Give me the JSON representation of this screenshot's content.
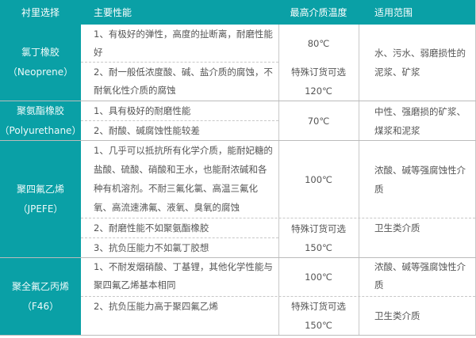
{
  "colors": {
    "header_bg": "#0aa0a6",
    "header_text": "#ffffff",
    "body_text": "#555555"
  },
  "headers": [
    "衬里选择",
    "主要性能",
    "最高介质温度",
    "适用范围"
  ],
  "rows": [
    {
      "name": [
        "氯丁橡胶",
        "（Neoprene）"
      ],
      "props": [
        "1、有极好的弹性，高度的扯断离，耐磨性能好",
        "2、耐一般低浓度酸、碱、盐介质的腐蚀，不耐氧化性介质的腐蚀"
      ],
      "temps": [
        "80℃",
        "特殊订货可选",
        "120℃"
      ],
      "scope": [
        "水、污水、弱磨损性的泥浆、矿浆"
      ]
    },
    {
      "name": [
        "聚氨酯橡胶",
        "（Polyurethane）"
      ],
      "props": [
        "1、具有极好的耐磨性能",
        "2、耐酸、碱腐蚀性能较差"
      ],
      "temps": [
        "70℃"
      ],
      "scope": [
        "中性、强磨损的矿浆、煤浆和泥浆"
      ]
    },
    {
      "name": [
        "聚四氟乙烯",
        "（JPEFE）"
      ],
      "props": [
        "1、几乎可以抵抗所有化学介质，能耐妃糖的盐酸、硫酸、硝酸和王水，也能耐浓碱和各种有机溶剂。不耐三氟化氯、高温三氟化氧、高流速沸氟、液氧、臭氧的腐蚀",
        "2、耐磨性能不如聚氨酯橡胶",
        "3、抗负压能力不如氯丁胶想"
      ],
      "temps": [
        "100℃",
        "特殊订货可选",
        "150℃"
      ],
      "scope": [
        "浓酸、碱等强腐蚀性介质",
        "卫生类介质"
      ]
    },
    {
      "name": [
        "聚全氟乙丙烯",
        "（F46）"
      ],
      "props": [
        "1、不耐发烟硝酸、丁基锂，其他化学性能与聚四氟乙烯基本相同",
        "2、抗负压能力高于聚四氟乙烯"
      ],
      "temps": [
        "100℃",
        "特殊订货可选",
        "150℃"
      ],
      "scope": [
        "浓酸、碱等强腐蚀性介质",
        "卫生类介质"
      ]
    }
  ]
}
